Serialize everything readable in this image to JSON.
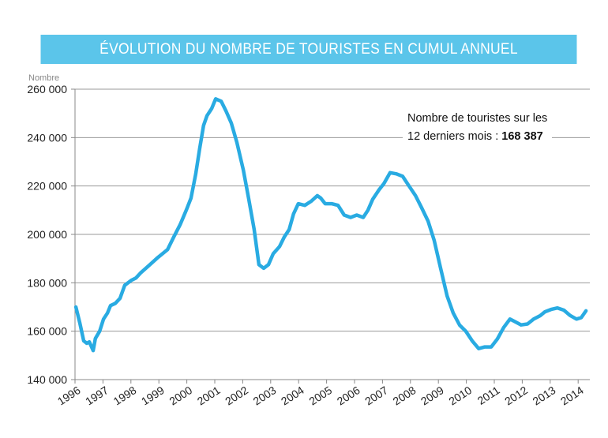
{
  "chart_data": {
    "type": "line",
    "title": "ÉVOLUTION DU NOMBRE DE TOURISTES EN CUMUL ANNUEL",
    "ylabel": "Nombre",
    "xlabel": "",
    "ylim": [
      140000,
      260000
    ],
    "yticks": [
      140000,
      160000,
      180000,
      200000,
      220000,
      240000,
      260000
    ],
    "ytick_labels": [
      "140 000",
      "160 000",
      "180 000",
      "200 000",
      "220 000",
      "240 000",
      "260 000"
    ],
    "xticks": [
      "1996",
      "1997",
      "1998",
      "1999",
      "2000",
      "2001",
      "2002",
      "2003",
      "2004",
      "2005",
      "2006",
      "2007",
      "2008",
      "2009",
      "2010",
      "2011",
      "2012",
      "2013",
      "2014"
    ],
    "grid": "horizontal",
    "line_color": "#29abe2",
    "banner_color": "#5bc5ea",
    "annotation": {
      "line1": "Nombre de touristes sur les",
      "line2": "12 derniers mois : ",
      "value": "168 387"
    },
    "series": [
      {
        "points": [
          [
            1996.03,
            170000
          ],
          [
            1996.17,
            163500
          ],
          [
            1996.31,
            156000
          ],
          [
            1996.42,
            155000
          ],
          [
            1996.51,
            155600
          ],
          [
            1996.65,
            152000
          ],
          [
            1996.73,
            157000
          ],
          [
            1996.88,
            160000
          ],
          [
            1997.02,
            165000
          ],
          [
            1997.16,
            167500
          ],
          [
            1997.27,
            170600
          ],
          [
            1997.44,
            171500
          ],
          [
            1997.61,
            173600
          ],
          [
            1997.78,
            179000
          ],
          [
            1998.01,
            181000
          ],
          [
            1998.18,
            182000
          ],
          [
            1998.34,
            184000
          ],
          [
            1998.68,
            187500
          ],
          [
            1998.97,
            190500
          ],
          [
            1999.31,
            193700
          ],
          [
            1999.53,
            198900
          ],
          [
            1999.76,
            204000
          ],
          [
            1999.98,
            210000
          ],
          [
            2000.15,
            215000
          ],
          [
            2000.32,
            225000
          ],
          [
            2000.46,
            235500
          ],
          [
            2000.6,
            245000
          ],
          [
            2000.72,
            249000
          ],
          [
            2000.89,
            252000
          ],
          [
            2001.03,
            256000
          ],
          [
            2001.23,
            255000
          ],
          [
            2001.4,
            251000
          ],
          [
            2001.59,
            246000
          ],
          [
            2001.79,
            238000
          ],
          [
            2002.02,
            226700
          ],
          [
            2002.21,
            215000
          ],
          [
            2002.41,
            202000
          ],
          [
            2002.58,
            187500
          ],
          [
            2002.75,
            186000
          ],
          [
            2002.92,
            187500
          ],
          [
            2003.09,
            192000
          ],
          [
            2003.32,
            195000
          ],
          [
            2003.49,
            199000
          ],
          [
            2003.66,
            202000
          ],
          [
            2003.82,
            208500
          ],
          [
            2003.99,
            212700
          ],
          [
            2004.22,
            212000
          ],
          [
            2004.45,
            213700
          ],
          [
            2004.67,
            216000
          ],
          [
            2004.79,
            215000
          ],
          [
            2004.95,
            212700
          ],
          [
            2005.18,
            212700
          ],
          [
            2005.41,
            212000
          ],
          [
            2005.63,
            208000
          ],
          [
            2005.86,
            207000
          ],
          [
            2006.08,
            208000
          ],
          [
            2006.31,
            207000
          ],
          [
            2006.48,
            210000
          ],
          [
            2006.65,
            214500
          ],
          [
            2006.88,
            218500
          ],
          [
            2007.05,
            221000
          ],
          [
            2007.27,
            225500
          ],
          [
            2007.5,
            225000
          ],
          [
            2007.72,
            224000
          ],
          [
            2007.95,
            220000
          ],
          [
            2008.18,
            216000
          ],
          [
            2008.4,
            211000
          ],
          [
            2008.63,
            205500
          ],
          [
            2008.85,
            197500
          ],
          [
            2009.08,
            186000
          ],
          [
            2009.31,
            174600
          ],
          [
            2009.53,
            167500
          ],
          [
            2009.76,
            162500
          ],
          [
            2009.98,
            160000
          ],
          [
            2010.21,
            156000
          ],
          [
            2010.44,
            152800
          ],
          [
            2010.66,
            153500
          ],
          [
            2010.89,
            153500
          ],
          [
            2011.11,
            156800
          ],
          [
            2011.34,
            161600
          ],
          [
            2011.56,
            165000
          ],
          [
            2011.73,
            164000
          ],
          [
            2011.96,
            162600
          ],
          [
            2012.19,
            163000
          ],
          [
            2012.41,
            165000
          ],
          [
            2012.64,
            166400
          ],
          [
            2012.81,
            168000
          ],
          [
            2013.03,
            169000
          ],
          [
            2013.26,
            169600
          ],
          [
            2013.49,
            168700
          ],
          [
            2013.71,
            166500
          ],
          [
            2013.94,
            165000
          ],
          [
            2014.11,
            165600
          ],
          [
            2014.28,
            168387
          ]
        ]
      }
    ]
  }
}
